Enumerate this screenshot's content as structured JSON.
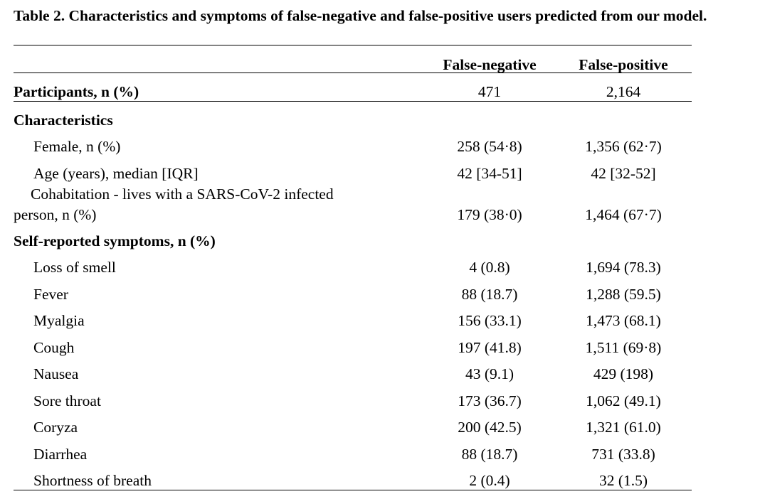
{
  "caption": "Table 2. Characteristics and symptoms of false-negative and false-positive users predicted from our model.",
  "columns": {
    "col1": "False-negative",
    "col2": "False-positive"
  },
  "participants": {
    "label": "Participants, n (%)",
    "v1": "471",
    "v2": "2,164"
  },
  "characteristics": {
    "heading": "Characteristics",
    "rows": [
      {
        "label": "Female, n (%)",
        "v1": "258 (54·8)",
        "v2": "1,356 (62·7)"
      },
      {
        "label": "Age (years), median [IQR]",
        "v1": "42 [34-51]",
        "v2": "42 [32-52]"
      }
    ],
    "cohab": {
      "line1": "Cohabitation - lives with a SARS-CoV-2 infected",
      "line2": "person, n (%)",
      "v1": "179 (38·0)",
      "v2": "1,464 (67·7)"
    }
  },
  "symptoms": {
    "heading": "Self-reported symptoms, n (%)",
    "rows": [
      {
        "label": "Loss of smell",
        "v1": "4 (0.8)",
        "v2": "1,694 (78.3)"
      },
      {
        "label": "Fever",
        "v1": "88 (18.7)",
        "v2": "1,288 (59.5)"
      },
      {
        "label": "Myalgia",
        "v1": "156 (33.1)",
        "v2": "1,473 (68.1)"
      },
      {
        "label": "Cough",
        "v1": "197 (41.8)",
        "v2": "1,511 (69·8)"
      },
      {
        "label": "Nausea",
        "v1": "43 (9.1)",
        "v2": "429 (198)"
      },
      {
        "label": "Sore throat",
        "v1": "173 (36.7)",
        "v2": "1,062 (49.1)"
      },
      {
        "label": "Coryza",
        "v1": "200 (42.5)",
        "v2": "1,321 (61.0)"
      },
      {
        "label": "Diarrhea",
        "v1": "88 (18.7)",
        "v2": "731 (33.8)"
      },
      {
        "label": "Shortness of breath",
        "v1": "2 (0.4)",
        "v2": "32 (1.5)"
      }
    ]
  }
}
